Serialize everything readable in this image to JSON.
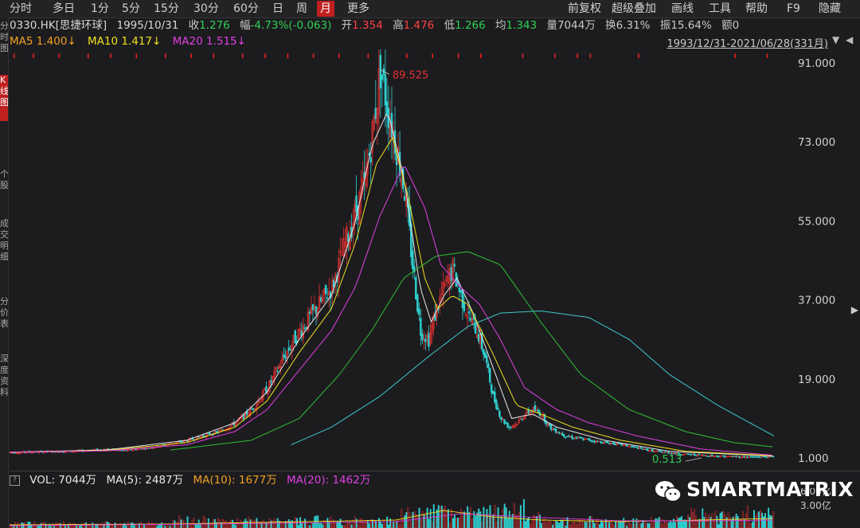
{
  "toolbar": {
    "periods": [
      "分时",
      "多日",
      "1分",
      "5分",
      "15分",
      "30分",
      "60分",
      "日",
      "周",
      "月",
      "更多"
    ],
    "active_period": "月",
    "right_items": [
      "前复权",
      "超级叠加",
      "画线",
      "工具",
      "帮助",
      "F9",
      "隐藏"
    ]
  },
  "sidebar": {
    "tabs": [
      "分时图",
      "K线图",
      "个股",
      "成交明细",
      "分价表",
      "深度资料"
    ],
    "active_tab": "K线图"
  },
  "info": {
    "code": "0330.HK[思捷环球]",
    "date": "1995/10/31",
    "close_label": "收",
    "close": "1.276",
    "change_label": "幅",
    "change": "-4.73%(-0.063)",
    "open_label": "开",
    "open": "1.354",
    "high_label": "高",
    "high": "1.476",
    "low_label": "低",
    "low": "1.266",
    "avg_label": "均",
    "avg": "1.343",
    "vol_label": "量",
    "volume": "7044万",
    "turnover_label": "换",
    "turnover": "6.31%",
    "amplitude_label": "振",
    "amplitude": "15.64%",
    "amount_label": "额",
    "amount": "0"
  },
  "ma": {
    "ma5": "MA5 1.400↓",
    "ma10": "MA10 1.417↓",
    "ma20": "MA20 1.515↓"
  },
  "range": "1993/12/31-2021/06/28(331月)",
  "volume_panel": {
    "vol": "VOL: 7044万",
    "ma5": "MA(5): 2487万",
    "ma10": "MA(10): 1677万",
    "ma20": "MA(20): 1462万",
    "axis_labels": [
      "6.00亿",
      "3.00亿"
    ]
  },
  "watermark": "SMARTMATRIX",
  "colors": {
    "up": "#e03030",
    "down": "#30d0d0",
    "ma5": "#e8e8e8",
    "ma10": "#f0e020",
    "ma20": "#e040e0",
    "ma60": "#30c030",
    "ma120": "#40c8c8",
    "active": "#c02020"
  },
  "chart_data": {
    "type": "candlestick",
    "y_ticks": [
      "91.000",
      "73.000",
      "55.000",
      "37.000",
      "19.000",
      "1.000"
    ],
    "ylim": [
      1,
      91
    ],
    "annotations": [
      {
        "label": "89.525",
        "kind": "max"
      },
      {
        "label": "0.513",
        "kind": "min"
      }
    ],
    "price_envelope": [
      [
        0,
        2.2
      ],
      [
        20,
        2.4
      ],
      [
        40,
        2.5
      ],
      [
        60,
        3.0
      ],
      [
        70,
        2.6
      ],
      [
        90,
        3.5
      ],
      [
        110,
        5
      ],
      [
        120,
        6
      ],
      [
        130,
        7
      ],
      [
        140,
        9
      ],
      [
        150,
        12
      ],
      [
        160,
        17
      ],
      [
        170,
        24
      ],
      [
        180,
        30
      ],
      [
        190,
        35
      ],
      [
        200,
        40
      ],
      [
        210,
        52
      ],
      [
        220,
        63
      ],
      [
        225,
        75
      ],
      [
        230,
        89.5
      ],
      [
        235,
        80
      ],
      [
        240,
        72
      ],
      [
        245,
        62
      ],
      [
        250,
        45
      ],
      [
        255,
        30
      ],
      [
        260,
        28
      ],
      [
        265,
        35
      ],
      [
        270,
        40
      ],
      [
        275,
        44
      ],
      [
        280,
        38
      ],
      [
        285,
        33
      ],
      [
        290,
        30
      ],
      [
        295,
        24
      ],
      [
        300,
        15
      ],
      [
        305,
        10
      ],
      [
        310,
        8
      ],
      [
        315,
        9
      ],
      [
        320,
        11
      ],
      [
        325,
        12
      ],
      [
        330,
        11
      ],
      [
        335,
        8
      ],
      [
        345,
        6
      ],
      [
        360,
        5
      ],
      [
        380,
        4
      ],
      [
        400,
        2.5
      ],
      [
        420,
        1.8
      ],
      [
        440,
        1.4
      ],
      [
        460,
        1.2
      ],
      [
        475,
        1.3
      ]
    ],
    "ma_curves": {
      "ma5": [
        [
          0,
          2.3
        ],
        [
          60,
          2.8
        ],
        [
          110,
          5
        ],
        [
          140,
          9
        ],
        [
          160,
          16
        ],
        [
          180,
          28
        ],
        [
          200,
          38
        ],
        [
          215,
          55
        ],
        [
          225,
          72
        ],
        [
          235,
          80
        ],
        [
          245,
          65
        ],
        [
          255,
          40
        ],
        [
          262,
          32
        ],
        [
          270,
          38
        ],
        [
          278,
          42
        ],
        [
          288,
          34
        ],
        [
          300,
          22
        ],
        [
          312,
          10
        ],
        [
          325,
          11
        ],
        [
          340,
          8
        ],
        [
          370,
          5
        ],
        [
          410,
          2.5
        ],
        [
          475,
          1.4
        ]
      ],
      "ma10": [
        [
          0,
          2.3
        ],
        [
          60,
          2.7
        ],
        [
          110,
          4.5
        ],
        [
          140,
          8
        ],
        [
          160,
          14
        ],
        [
          180,
          25
        ],
        [
          200,
          35
        ],
        [
          215,
          50
        ],
        [
          228,
          68
        ],
        [
          238,
          74
        ],
        [
          248,
          60
        ],
        [
          258,
          42
        ],
        [
          266,
          35
        ],
        [
          275,
          38
        ],
        [
          285,
          36
        ],
        [
          300,
          25
        ],
        [
          315,
          13
        ],
        [
          330,
          11
        ],
        [
          350,
          8
        ],
        [
          380,
          5
        ],
        [
          420,
          2.5
        ],
        [
          475,
          1.5
        ]
      ],
      "ma20": [
        [
          0,
          2.3
        ],
        [
          60,
          2.6
        ],
        [
          110,
          4
        ],
        [
          140,
          7
        ],
        [
          160,
          12
        ],
        [
          180,
          21
        ],
        [
          200,
          30
        ],
        [
          215,
          40
        ],
        [
          230,
          56
        ],
        [
          245,
          68
        ],
        [
          258,
          58
        ],
        [
          268,
          45
        ],
        [
          280,
          40
        ],
        [
          292,
          36
        ],
        [
          305,
          28
        ],
        [
          320,
          17
        ],
        [
          340,
          12
        ],
        [
          360,
          9
        ],
        [
          390,
          6
        ],
        [
          430,
          3
        ],
        [
          475,
          1.6
        ]
      ],
      "ma60": [
        [
          100,
          2.8
        ],
        [
          150,
          5
        ],
        [
          180,
          10
        ],
        [
          205,
          20
        ],
        [
          225,
          30
        ],
        [
          245,
          42
        ],
        [
          265,
          47
        ],
        [
          285,
          48
        ],
        [
          305,
          45
        ],
        [
          330,
          32
        ],
        [
          355,
          20
        ],
        [
          385,
          12
        ],
        [
          420,
          7
        ],
        [
          450,
          4.5
        ],
        [
          475,
          3.5
        ]
      ],
      "ma120": [
        [
          175,
          4
        ],
        [
          200,
          8
        ],
        [
          230,
          15
        ],
        [
          260,
          24
        ],
        [
          285,
          31
        ],
        [
          305,
          34
        ],
        [
          330,
          34.5
        ],
        [
          360,
          33
        ],
        [
          385,
          28
        ],
        [
          410,
          20
        ],
        [
          440,
          13
        ],
        [
          475,
          6
        ]
      ]
    },
    "volume_ylabels": [
      "6.00亿",
      "3.00亿"
    ]
  }
}
